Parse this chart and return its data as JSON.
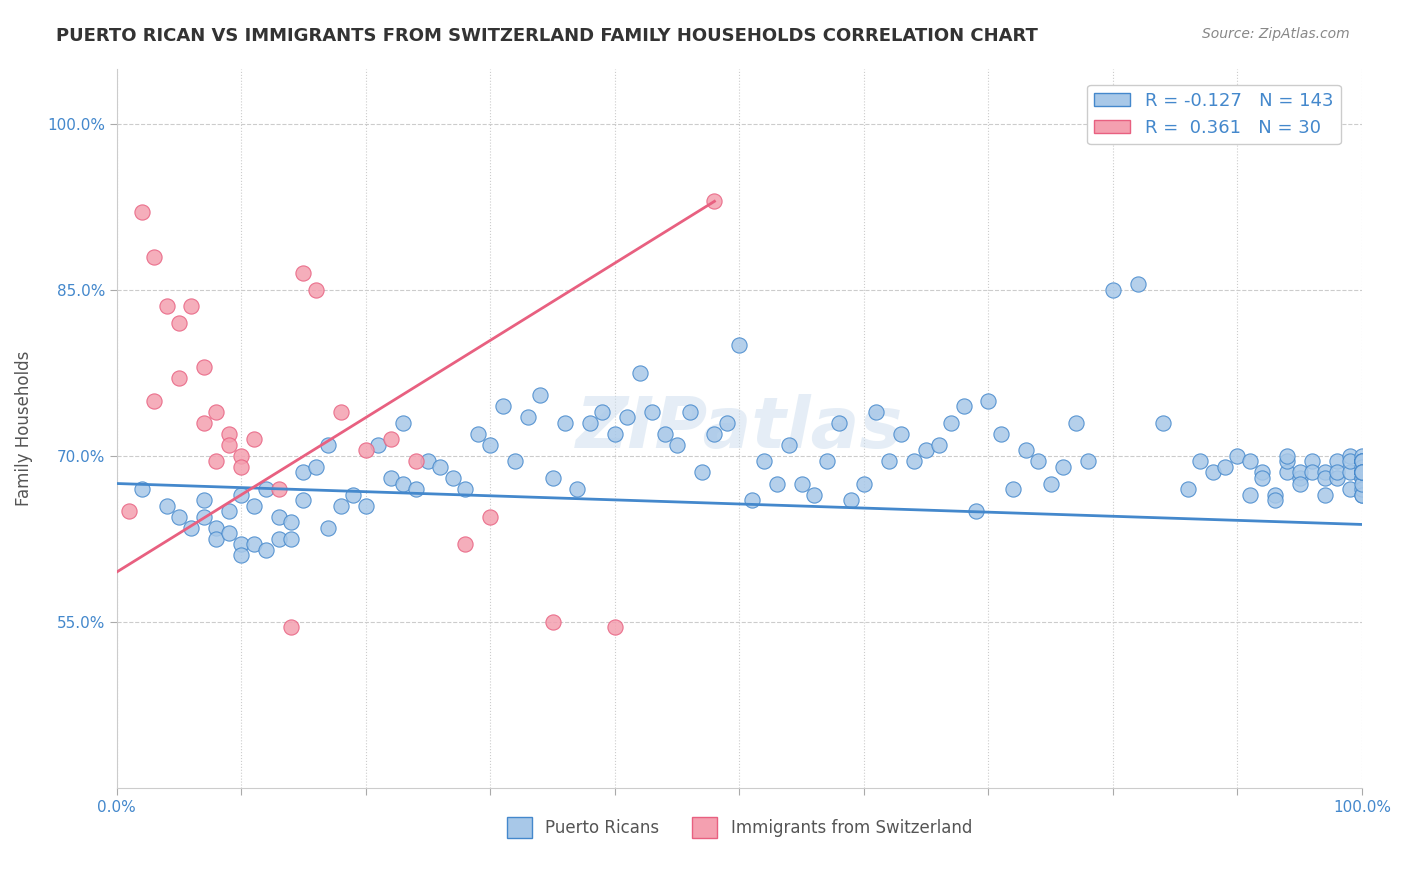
{
  "title": "PUERTO RICAN VS IMMIGRANTS FROM SWITZERLAND FAMILY HOUSEHOLDS CORRELATION CHART",
  "source": "Source: ZipAtlas.com",
  "ylabel": "Family Households",
  "watermark": "ZIPatlas",
  "legend_labels": [
    "Puerto Ricans",
    "Immigrants from Switzerland"
  ],
  "blue_color": "#a8c8e8",
  "pink_color": "#f4a0b0",
  "blue_line_color": "#4488cc",
  "pink_line_color": "#e86080",
  "axis_label_color": "#4488cc",
  "R_blue": -0.127,
  "N_blue": 143,
  "R_pink": 0.361,
  "N_pink": 30,
  "xlim": [
    0.0,
    1.0
  ],
  "ylim": [
    0.4,
    1.05
  ],
  "yticks": [
    0.55,
    0.7,
    0.85,
    1.0
  ],
  "ytick_labels": [
    "55.0%",
    "70.0%",
    "85.0%",
    "100.0%"
  ],
  "xticks": [
    0.0,
    0.1,
    0.2,
    0.3,
    0.4,
    0.5,
    0.6,
    0.7,
    0.8,
    0.9,
    1.0
  ],
  "blue_x": [
    0.02,
    0.04,
    0.05,
    0.06,
    0.07,
    0.07,
    0.08,
    0.08,
    0.09,
    0.09,
    0.1,
    0.1,
    0.1,
    0.11,
    0.11,
    0.12,
    0.12,
    0.13,
    0.13,
    0.14,
    0.14,
    0.15,
    0.15,
    0.16,
    0.17,
    0.17,
    0.18,
    0.19,
    0.2,
    0.21,
    0.22,
    0.23,
    0.23,
    0.24,
    0.25,
    0.26,
    0.27,
    0.28,
    0.29,
    0.3,
    0.31,
    0.32,
    0.33,
    0.34,
    0.35,
    0.36,
    0.37,
    0.38,
    0.39,
    0.4,
    0.41,
    0.42,
    0.43,
    0.44,
    0.45,
    0.46,
    0.47,
    0.48,
    0.49,
    0.5,
    0.51,
    0.52,
    0.53,
    0.54,
    0.55,
    0.56,
    0.57,
    0.58,
    0.59,
    0.6,
    0.61,
    0.62,
    0.63,
    0.64,
    0.65,
    0.66,
    0.67,
    0.68,
    0.69,
    0.7,
    0.71,
    0.72,
    0.73,
    0.74,
    0.75,
    0.76,
    0.77,
    0.78,
    0.8,
    0.82,
    0.84,
    0.86,
    0.87,
    0.88,
    0.89,
    0.9,
    0.91,
    0.91,
    0.92,
    0.92,
    0.93,
    0.93,
    0.94,
    0.94,
    0.94,
    0.95,
    0.95,
    0.95,
    0.96,
    0.96,
    0.97,
    0.97,
    0.97,
    0.98,
    0.98,
    0.98,
    0.99,
    0.99,
    0.99,
    0.99,
    1.0,
    1.0,
    1.0,
    1.0,
    1.0,
    1.0,
    1.0,
    1.0,
    1.0,
    1.0,
    1.0,
    1.0,
    1.0,
    1.0,
    1.0,
    1.0,
    1.0,
    1.0,
    1.0,
    1.0,
    1.0,
    1.0,
    1.0
  ],
  "blue_y": [
    0.67,
    0.655,
    0.645,
    0.635,
    0.66,
    0.645,
    0.635,
    0.625,
    0.65,
    0.63,
    0.62,
    0.61,
    0.665,
    0.655,
    0.62,
    0.615,
    0.67,
    0.645,
    0.625,
    0.64,
    0.625,
    0.685,
    0.66,
    0.69,
    0.71,
    0.635,
    0.655,
    0.665,
    0.655,
    0.71,
    0.68,
    0.73,
    0.675,
    0.67,
    0.695,
    0.69,
    0.68,
    0.67,
    0.72,
    0.71,
    0.745,
    0.695,
    0.735,
    0.755,
    0.68,
    0.73,
    0.67,
    0.73,
    0.74,
    0.72,
    0.735,
    0.775,
    0.74,
    0.72,
    0.71,
    0.74,
    0.685,
    0.72,
    0.73,
    0.8,
    0.66,
    0.695,
    0.675,
    0.71,
    0.675,
    0.665,
    0.695,
    0.73,
    0.66,
    0.675,
    0.74,
    0.695,
    0.72,
    0.695,
    0.705,
    0.71,
    0.73,
    0.745,
    0.65,
    0.75,
    0.72,
    0.67,
    0.705,
    0.695,
    0.675,
    0.69,
    0.73,
    0.695,
    0.85,
    0.855,
    0.73,
    0.67,
    0.695,
    0.685,
    0.69,
    0.7,
    0.695,
    0.665,
    0.685,
    0.68,
    0.665,
    0.66,
    0.685,
    0.695,
    0.7,
    0.68,
    0.685,
    0.675,
    0.695,
    0.685,
    0.685,
    0.665,
    0.68,
    0.68,
    0.695,
    0.685,
    0.685,
    0.67,
    0.7,
    0.695,
    0.685,
    0.695,
    0.68,
    0.685,
    0.695,
    0.665,
    0.695,
    0.685,
    0.695,
    0.7,
    0.695,
    0.68,
    0.685,
    0.67,
    0.695,
    0.685,
    0.665,
    0.675,
    0.69,
    0.695,
    0.685,
    0.685,
    0.685
  ],
  "pink_x": [
    0.01,
    0.02,
    0.03,
    0.03,
    0.04,
    0.05,
    0.05,
    0.06,
    0.07,
    0.07,
    0.08,
    0.08,
    0.09,
    0.09,
    0.1,
    0.1,
    0.11,
    0.13,
    0.14,
    0.15,
    0.16,
    0.18,
    0.2,
    0.22,
    0.24,
    0.28,
    0.3,
    0.35,
    0.4,
    0.48
  ],
  "pink_y": [
    0.65,
    0.92,
    0.75,
    0.88,
    0.835,
    0.77,
    0.82,
    0.835,
    0.78,
    0.73,
    0.74,
    0.695,
    0.72,
    0.71,
    0.7,
    0.69,
    0.715,
    0.67,
    0.545,
    0.865,
    0.85,
    0.74,
    0.705,
    0.715,
    0.695,
    0.62,
    0.645,
    0.55,
    0.545,
    0.93
  ],
  "blue_trend_x": [
    0.0,
    1.0
  ],
  "blue_trend_y": [
    0.675,
    0.638
  ],
  "pink_trend_x": [
    0.0,
    0.48
  ],
  "pink_trend_y": [
    0.595,
    0.93
  ]
}
